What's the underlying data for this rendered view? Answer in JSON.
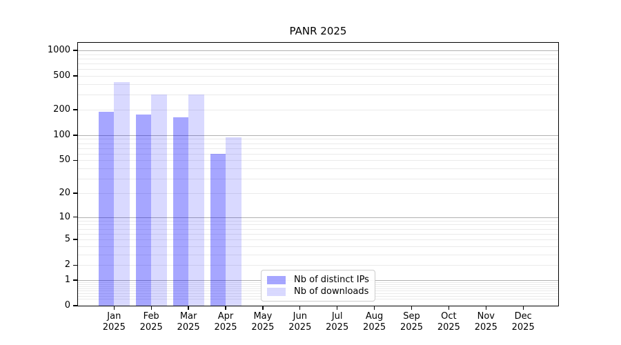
{
  "chart_data": {
    "type": "bar",
    "title": "PANR 2025",
    "xlabel": "",
    "ylabel": "",
    "y_scale": "log10(1+x)",
    "ylim": [
      0,
      1250
    ],
    "grid": true,
    "legend_position": "lower-center",
    "categories": [
      {
        "month": "Jan",
        "year": "2025"
      },
      {
        "month": "Feb",
        "year": "2025"
      },
      {
        "month": "Mar",
        "year": "2025"
      },
      {
        "month": "Apr",
        "year": "2025"
      },
      {
        "month": "May",
        "year": "2025"
      },
      {
        "month": "Jun",
        "year": "2025"
      },
      {
        "month": "Jul",
        "year": "2025"
      },
      {
        "month": "Aug",
        "year": "2025"
      },
      {
        "month": "Sep",
        "year": "2025"
      },
      {
        "month": "Oct",
        "year": "2025"
      },
      {
        "month": "Nov",
        "year": "2025"
      },
      {
        "month": "Dec",
        "year": "2025"
      }
    ],
    "series": [
      {
        "name": "Nb of distinct IPs",
        "color": "rgba(0,0,255,0.35)",
        "values": [
          188,
          175,
          163,
          60,
          0,
          0,
          0,
          0,
          0,
          0,
          0,
          0
        ]
      },
      {
        "name": "Nb of downloads",
        "color": "rgba(0,0,255,0.15)",
        "values": [
          420,
          305,
          305,
          94,
          0,
          0,
          0,
          0,
          0,
          0,
          0,
          0
        ]
      }
    ],
    "y_ticks": [
      0,
      1,
      2,
      5,
      10,
      20,
      50,
      100,
      200,
      500,
      1000
    ],
    "y_major_gridlines": [
      1,
      10,
      100,
      1000
    ]
  },
  "colors": {
    "major_grid": "#b0b0b0",
    "minor_grid": "#eaeaea",
    "axis": "#000000",
    "bar_distinct_ips": "rgba(0,0,255,0.35)",
    "bar_downloads": "rgba(0,0,255,0.15)"
  }
}
